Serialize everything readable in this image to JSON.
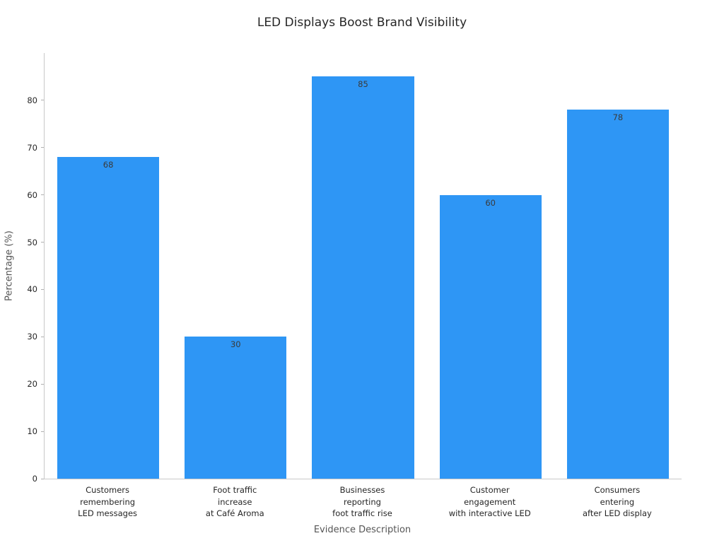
{
  "chart_data": {
    "type": "bar",
    "title": "LED Displays Boost Brand Visibility",
    "xlabel": "Evidence Description",
    "ylabel": "Percentage (%)",
    "categories": [
      "Customers remembering LED messages",
      "Foot traffic increase at Café Aroma",
      "Businesses reporting foot traffic rise",
      "Customer engagement with interactive LED",
      "Consumers entering after LED display"
    ],
    "category_lines": [
      [
        "Customers",
        "remembering",
        "LED messages"
      ],
      [
        "Foot traffic",
        "increase",
        "at Café Aroma"
      ],
      [
        "Businesses",
        "reporting",
        "foot traffic rise"
      ],
      [
        "Customer",
        "engagement",
        "with interactive LED"
      ],
      [
        "Consumers",
        "entering",
        "after LED display"
      ]
    ],
    "values": [
      68,
      30,
      85,
      60,
      78
    ],
    "yticks": [
      0,
      10,
      20,
      30,
      40,
      50,
      60,
      70,
      80
    ],
    "ylim": [
      0,
      90
    ],
    "bar_color": "#2E96F5",
    "value_label_color": "#3a3a3a",
    "grid": false,
    "legend": null
  }
}
